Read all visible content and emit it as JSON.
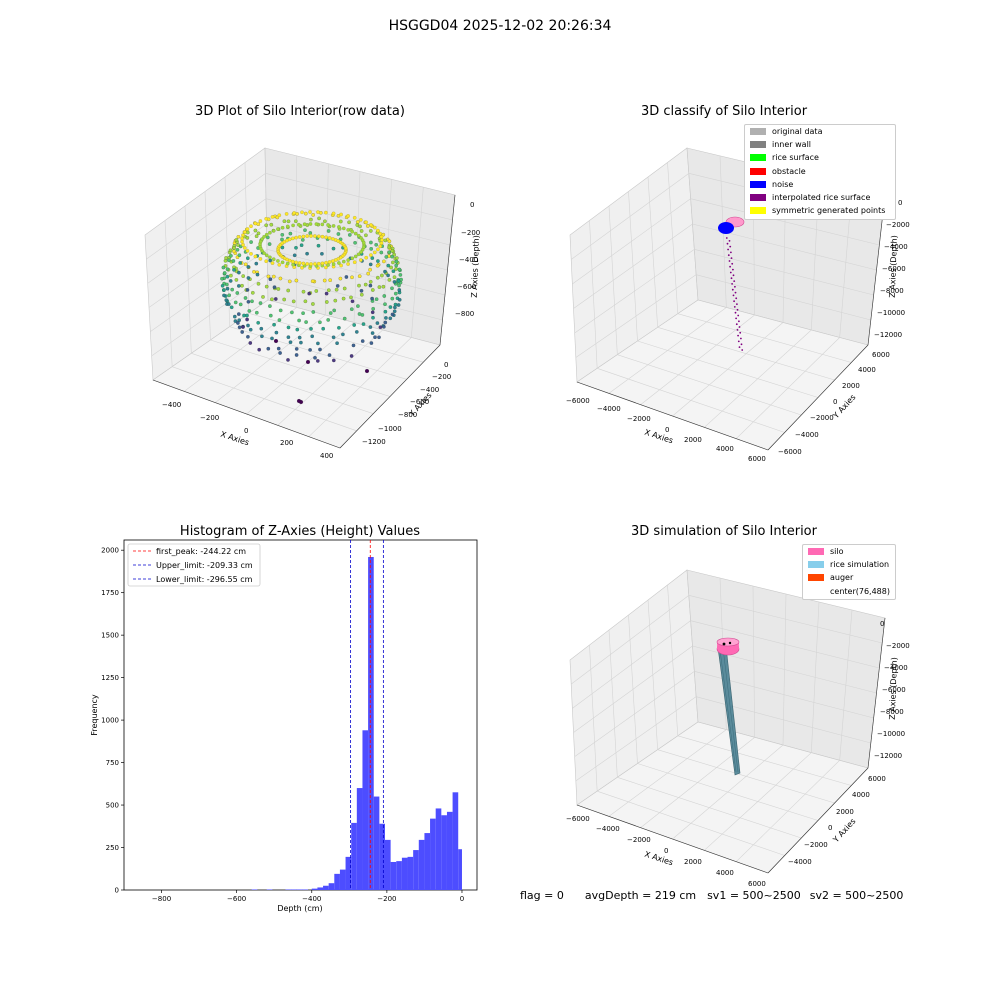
{
  "figure": {
    "suptitle": "HSGGD04 2025-12-02 20:26:34",
    "footer": {
      "flag": "flag = 0",
      "avg_depth": "avgDepth = 219 cm",
      "sv1": "sv1 = 500~2500",
      "sv2": "sv2 = 500~2500"
    }
  },
  "chart_data": [
    {
      "type": "scatter",
      "projection": "3d",
      "title": "3D Plot of Silo Interior(row data)",
      "xlabel": "X Axies",
      "ylabel": "Y Axies",
      "zlabel": "Z Axies (Depth)",
      "x_ticks": [
        "−400",
        "−200",
        "0",
        "200",
        "400"
      ],
      "y_ticks": [
        "0",
        "−200",
        "−400",
        "−600",
        "−800",
        "−1000",
        "−1200"
      ],
      "z_ticks": [
        "0",
        "−200",
        "−400",
        "−600",
        "−800"
      ],
      "xlim": [
        -500,
        500
      ],
      "ylim": [
        -1300,
        100
      ],
      "zlim": [
        -950,
        50
      ],
      "colormap": "viridis",
      "grid": true
    },
    {
      "type": "scatter",
      "projection": "3d",
      "title": "3D classify of Silo Interior",
      "xlabel": "X Axies",
      "ylabel": "Y Axies",
      "zlabel": "Z Axies (Depth)",
      "x_ticks": [
        "−6000",
        "−4000",
        "−2000",
        "0",
        "2000",
        "4000",
        "6000"
      ],
      "y_ticks": [
        "6000",
        "4000",
        "2000",
        "0",
        "−2000",
        "−4000",
        "−6000"
      ],
      "z_ticks": [
        "0",
        "−2000",
        "−4000",
        "−6000",
        "−8000",
        "−10000",
        "−12000"
      ],
      "xlim": [
        -6000,
        6000
      ],
      "ylim": [
        -6000,
        6000
      ],
      "zlim": [
        -12000,
        0
      ],
      "legend": {
        "position": "upper right",
        "entries": [
          {
            "label": "original data",
            "color": "#b0b0b0"
          },
          {
            "label": "inner wall",
            "color": "#808080"
          },
          {
            "label": "rice surface",
            "color": "#00ff00"
          },
          {
            "label": "obstacle",
            "color": "#ff0000"
          },
          {
            "label": "noise",
            "color": "#0000ff"
          },
          {
            "label": "interpolated rice surface",
            "color": "#800080"
          },
          {
            "label": "symmetric generated points",
            "color": "#ffff00"
          }
        ]
      },
      "grid": true
    },
    {
      "type": "bar",
      "subtype": "histogram",
      "title": "Histogram of Z-Axies (Height) Values",
      "xlabel": "Depth (cm)",
      "ylabel": "Frequency",
      "xlim": [
        -900,
        40
      ],
      "ylim": [
        0,
        2060
      ],
      "x_ticks": [
        -800,
        -600,
        -400,
        -200,
        0
      ],
      "y_ticks": [
        0,
        250,
        500,
        750,
        1000,
        1250,
        1500,
        1750,
        2000
      ],
      "bar_color": "#4d4dff",
      "bins": [
        {
          "start": -560,
          "end": -545,
          "count": 3
        },
        {
          "start": -520,
          "end": -505,
          "count": 3
        },
        {
          "start": -470,
          "end": -455,
          "count": 3
        },
        {
          "start": -455,
          "end": -440,
          "count": 3
        },
        {
          "start": -440,
          "end": -425,
          "count": 3
        },
        {
          "start": -425,
          "end": -410,
          "count": 3
        },
        {
          "start": -400,
          "end": -385,
          "count": 8
        },
        {
          "start": -385,
          "end": -370,
          "count": 15
        },
        {
          "start": -370,
          "end": -355,
          "count": 25
        },
        {
          "start": -355,
          "end": -340,
          "count": 40
        },
        {
          "start": -340,
          "end": -325,
          "count": 95
        },
        {
          "start": -325,
          "end": -310,
          "count": 120
        },
        {
          "start": -310,
          "end": -295,
          "count": 195
        },
        {
          "start": -295,
          "end": -280,
          "count": 395
        },
        {
          "start": -280,
          "end": -265,
          "count": 600
        },
        {
          "start": -265,
          "end": -250,
          "count": 940
        },
        {
          "start": -250,
          "end": -235,
          "count": 1960
        },
        {
          "start": -235,
          "end": -220,
          "count": 550
        },
        {
          "start": -220,
          "end": -205,
          "count": 390
        },
        {
          "start": -205,
          "end": -190,
          "count": 295
        },
        {
          "start": -190,
          "end": -175,
          "count": 165
        },
        {
          "start": -175,
          "end": -160,
          "count": 170
        },
        {
          "start": -160,
          "end": -145,
          "count": 190
        },
        {
          "start": -145,
          "end": -130,
          "count": 195
        },
        {
          "start": -130,
          "end": -115,
          "count": 235
        },
        {
          "start": -115,
          "end": -100,
          "count": 295
        },
        {
          "start": -100,
          "end": -85,
          "count": 335
        },
        {
          "start": -85,
          "end": -70,
          "count": 420
        },
        {
          "start": -70,
          "end": -55,
          "count": 480
        },
        {
          "start": -55,
          "end": -40,
          "count": 440
        },
        {
          "start": -40,
          "end": -25,
          "count": 460
        },
        {
          "start": -25,
          "end": -10,
          "count": 575
        },
        {
          "start": -10,
          "end": 0,
          "count": 240
        }
      ],
      "lines": [
        {
          "label": "first_peak: -244.22 cm",
          "x": -244.22,
          "color": "#ff0000"
        },
        {
          "label": "Upper_limit: -209.33 cm",
          "x": -209.33,
          "color": "#0000cc"
        },
        {
          "label": "Lower_limit: -296.55 cm",
          "x": -296.55,
          "color": "#0000cc"
        }
      ],
      "legend": {
        "position": "upper left"
      },
      "grid": false
    },
    {
      "type": "scatter",
      "projection": "3d",
      "title": "3D simulation of Silo Interior",
      "xlabel": "X Axies",
      "ylabel": "Y Axies",
      "zlabel": "Z Axies (Depth)",
      "x_ticks": [
        "−6000",
        "−4000",
        "−2000",
        "0",
        "2000",
        "4000",
        "6000"
      ],
      "y_ticks": [
        "6000",
        "4000",
        "2000",
        "0",
        "−2000",
        "−4000"
      ],
      "z_ticks": [
        "0",
        "−2000",
        "−4000",
        "−6000",
        "−8000",
        "−10000",
        "−12000"
      ],
      "xlim": [
        -6000,
        6000
      ],
      "ylim": [
        -6000,
        6000
      ],
      "zlim": [
        -12000,
        0
      ],
      "legend": {
        "position": "upper right",
        "entries": [
          {
            "label": "silo",
            "color": "#ff69b4"
          },
          {
            "label": "rice simulation",
            "color": "#87ceeb"
          },
          {
            "label": "auger",
            "color": "#ff4500"
          },
          {
            "label": "center(76,488)",
            "color": ""
          }
        ]
      },
      "grid": true
    }
  ]
}
